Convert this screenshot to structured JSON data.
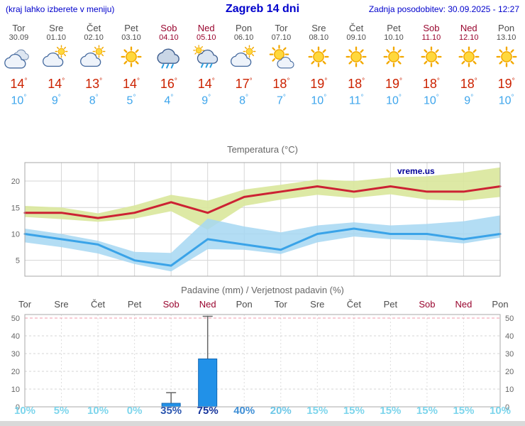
{
  "header": {
    "note": "(kraj lahko izberete v meniju)",
    "title": "Zagreb 14 dni",
    "updated": "Zadnja posodobitev: 30.09.2025 - 12:27"
  },
  "forecast": {
    "degree_symbol": "°",
    "days": [
      {
        "name": "Tor",
        "date": "30.09",
        "icon": "cloudy",
        "high": 14,
        "low": 10,
        "weekend": false
      },
      {
        "name": "Sre",
        "date": "01.10",
        "icon": "partly",
        "high": 14,
        "low": 9,
        "weekend": false
      },
      {
        "name": "Čet",
        "date": "02.10",
        "icon": "partly",
        "high": 13,
        "low": 8,
        "weekend": false
      },
      {
        "name": "Pet",
        "date": "03.10",
        "icon": "sunny",
        "high": 14,
        "low": 5,
        "weekend": false
      },
      {
        "name": "Sob",
        "date": "04.10",
        "icon": "rain",
        "high": 16,
        "low": 4,
        "weekend": true
      },
      {
        "name": "Ned",
        "date": "05.10",
        "icon": "showers",
        "high": 14,
        "low": 9,
        "weekend": true
      },
      {
        "name": "Pon",
        "date": "06.10",
        "icon": "partly",
        "high": 17,
        "low": 8,
        "weekend": false
      },
      {
        "name": "Tor",
        "date": "07.10",
        "icon": "mostly-sunny",
        "high": 18,
        "low": 7,
        "weekend": false
      },
      {
        "name": "Sre",
        "date": "08.10",
        "icon": "sunny",
        "high": 19,
        "low": 10,
        "weekend": false
      },
      {
        "name": "Čet",
        "date": "09.10",
        "icon": "sunny",
        "high": 18,
        "low": 11,
        "weekend": false
      },
      {
        "name": "Pet",
        "date": "10.10",
        "icon": "sunny",
        "high": 19,
        "low": 10,
        "weekend": false
      },
      {
        "name": "Sob",
        "date": "11.10",
        "icon": "sunny",
        "high": 18,
        "low": 10,
        "weekend": true
      },
      {
        "name": "Ned",
        "date": "12.10",
        "icon": "sunny",
        "high": 18,
        "low": 9,
        "weekend": true
      },
      {
        "name": "Pon",
        "date": "13.10",
        "icon": "sunny",
        "high": 19,
        "low": 10,
        "weekend": false
      }
    ]
  },
  "chart_data": [
    {
      "type": "line",
      "title": "Temperatura (°C)",
      "watermark": "vreme.us",
      "x": [
        "Tor 30.09",
        "Sre 01.10",
        "Čet 02.10",
        "Pet 03.10",
        "Sob 04.10",
        "Ned 05.10",
        "Pon 06.10",
        "Tor 07.10",
        "Sre 08.10",
        "Čet 09.10",
        "Pet 10.10",
        "Sob 11.10",
        "Ned 12.10",
        "Pon 13.10"
      ],
      "yticks": [
        5,
        10,
        15,
        20
      ],
      "ylim": [
        2,
        23.5
      ],
      "grid": true,
      "series": [
        {
          "name": "max-temp",
          "color": "#cc2233",
          "values": [
            14,
            14,
            13,
            14,
            16,
            14,
            17,
            18,
            19,
            18,
            19,
            18,
            18,
            19
          ]
        },
        {
          "name": "min-temp",
          "color": "#3aa3e8",
          "values": [
            10,
            9,
            8,
            5,
            4,
            9,
            8,
            7,
            10,
            11,
            10,
            10,
            9,
            10
          ]
        }
      ],
      "bands": [
        {
          "name": "max-range",
          "color": "#d9e79b",
          "opacity": 0.9,
          "lo": [
            13.2,
            12.8,
            12.3,
            12.9,
            14.3,
            10.8,
            15.3,
            16.5,
            17.4,
            16.8,
            17.5,
            16.5,
            16.3,
            17.0
          ],
          "hi": [
            15.3,
            15.0,
            13.9,
            15.4,
            17.4,
            16.3,
            18.4,
            19.3,
            20.3,
            20.0,
            20.7,
            20.9,
            21.6,
            22.6
          ]
        },
        {
          "name": "min-range",
          "color": "#a6d7f2",
          "opacity": 0.85,
          "lo": [
            8.4,
            7.5,
            6.3,
            4.3,
            2.9,
            7.1,
            7.0,
            6.2,
            8.4,
            9.5,
            9.0,
            8.8,
            8.2,
            9.3
          ],
          "hi": [
            11.0,
            10.0,
            8.7,
            6.6,
            6.4,
            12.9,
            11.4,
            10.3,
            11.6,
            12.2,
            11.6,
            11.9,
            12.4,
            13.5
          ]
        }
      ]
    },
    {
      "type": "bar",
      "title": "Padavine (mm) / Verjetnost padavin (%)",
      "categories": [
        "Tor",
        "Sre",
        "Čet",
        "Pet",
        "Sob",
        "Ned",
        "Pon",
        "Tor",
        "Sre",
        "Čet",
        "Pet",
        "Sob",
        "Ned",
        "Pon"
      ],
      "weekend_flags": [
        false,
        false,
        false,
        false,
        true,
        true,
        false,
        false,
        false,
        false,
        false,
        true,
        true,
        false
      ],
      "yticks": [
        0,
        10,
        20,
        30,
        40,
        50
      ],
      "ylim": [
        0,
        52
      ],
      "values": [
        0,
        0,
        0,
        0,
        2,
        27,
        0,
        0,
        0,
        0,
        0,
        0,
        0,
        0
      ],
      "whisker_max": [
        0,
        0,
        0,
        0,
        8,
        51,
        0,
        0,
        0,
        0,
        0,
        0,
        0,
        0
      ],
      "bar_color": "#2191e8",
      "bar_border": "#0f66b4",
      "probabilities": [
        "10%",
        "5%",
        "10%",
        "0%",
        "35%",
        "75%",
        "40%",
        "20%",
        "15%",
        "15%",
        "15%",
        "15%",
        "15%",
        "10%"
      ],
      "prob_colors": [
        "#7dd5ec",
        "#7dd5ec",
        "#7dd5ec",
        "#7dd5ec",
        "#2b56b0",
        "#15349b",
        "#3f8fd6",
        "#6fc8e8",
        "#7dd5ec",
        "#7dd5ec",
        "#7dd5ec",
        "#7dd5ec",
        "#7dd5ec",
        "#7dd5ec"
      ]
    }
  ],
  "colors": {
    "header_text": "#0000cc",
    "weekday_text": "#4d4d4d",
    "weekend_text": "#99052e",
    "high_temp": "#cc2200",
    "low_temp": "#3da5ec",
    "grid": "#d6d6d6",
    "grid_top_precip": "#f09aa8",
    "frame": "#a8a8a8",
    "watermark": "#000099"
  }
}
